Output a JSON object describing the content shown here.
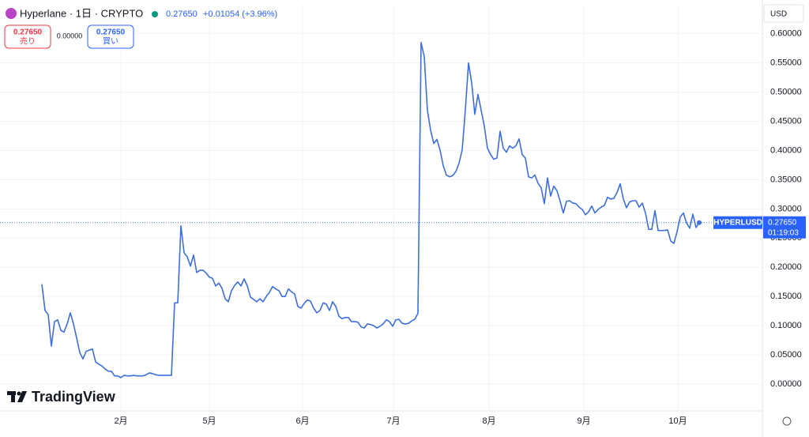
{
  "header": {
    "symbol": "Hyperlane · 1日 · CRYPTO",
    "price": "0.27650",
    "change": "+0.01054 (+3.96%)"
  },
  "trade": {
    "sell_price": "0.27650",
    "sell_label": "売り",
    "spread": "0.00000",
    "buy_price": "0.27650",
    "buy_label": "買い"
  },
  "currency": "USD",
  "logo": "TradingView",
  "price_label": {
    "symbol": "HYPERLUSD",
    "price": "0.27650",
    "countdown": "01:19:03"
  },
  "chart_data": {
    "type": "line",
    "color": "#3d6fd9",
    "grid": true,
    "values": [
      0.171,
      0.126,
      0.119,
      0.065,
      0.107,
      0.11,
      0.092,
      0.089,
      0.103,
      0.122,
      0.103,
      0.079,
      0.054,
      0.043,
      0.056,
      0.058,
      0.06,
      0.038,
      0.034,
      0.031,
      0.026,
      0.022,
      0.022,
      0.014,
      0.014,
      0.011,
      0.015,
      0.014,
      0.014,
      0.015,
      0.014,
      0.014,
      0.014,
      0.016,
      0.019,
      0.018,
      0.016,
      0.015,
      0.015,
      0.015,
      0.015,
      0.015,
      0.139,
      0.139,
      0.271,
      0.225,
      0.218,
      0.202,
      0.221,
      0.191,
      0.195,
      0.195,
      0.19,
      0.183,
      0.181,
      0.168,
      0.173,
      0.164,
      0.146,
      0.141,
      0.16,
      0.169,
      0.175,
      0.168,
      0.18,
      0.168,
      0.149,
      0.145,
      0.141,
      0.146,
      0.141,
      0.15,
      0.157,
      0.167,
      0.163,
      0.16,
      0.15,
      0.15,
      0.163,
      0.158,
      0.154,
      0.133,
      0.13,
      0.138,
      0.144,
      0.142,
      0.13,
      0.122,
      0.126,
      0.139,
      0.137,
      0.126,
      0.141,
      0.133,
      0.116,
      0.112,
      0.114,
      0.114,
      0.107,
      0.107,
      0.106,
      0.098,
      0.096,
      0.103,
      0.102,
      0.1,
      0.096,
      0.099,
      0.103,
      0.11,
      0.107,
      0.099,
      0.11,
      0.111,
      0.104,
      0.103,
      0.104,
      0.108,
      0.111,
      0.121,
      0.585,
      0.561,
      0.469,
      0.435,
      0.412,
      0.419,
      0.401,
      0.374,
      0.358,
      0.355,
      0.357,
      0.364,
      0.378,
      0.401,
      0.469,
      0.55,
      0.516,
      0.462,
      0.496,
      0.469,
      0.442,
      0.404,
      0.393,
      0.385,
      0.387,
      0.433,
      0.404,
      0.397,
      0.408,
      0.404,
      0.408,
      0.42,
      0.393,
      0.387,
      0.355,
      0.353,
      0.358,
      0.344,
      0.336,
      0.309,
      0.353,
      0.322,
      0.339,
      0.331,
      0.313,
      0.293,
      0.313,
      0.314,
      0.31,
      0.309,
      0.303,
      0.299,
      0.29,
      0.295,
      0.305,
      0.293,
      0.299,
      0.303,
      0.306,
      0.32,
      0.317,
      0.318,
      0.328,
      0.343,
      0.317,
      0.302,
      0.312,
      0.314,
      0.314,
      0.303,
      0.31,
      0.293,
      0.265,
      0.265,
      0.297,
      0.263,
      0.263,
      0.263,
      0.264,
      0.245,
      0.241,
      0.261,
      0.286,
      0.293,
      0.276,
      0.267,
      0.291,
      0.268,
      0.2765
    ],
    "xlim": [
      -13.25,
      228
    ],
    "xticks": [
      {
        "value": 25,
        "label": "2月"
      },
      {
        "value": 53,
        "label": "5月"
      },
      {
        "value": 82.5,
        "label": "6月"
      },
      {
        "value": 111.25,
        "label": "7月"
      },
      {
        "value": 141.5,
        "label": "8月"
      },
      {
        "value": 171.5,
        "label": "9月"
      },
      {
        "value": 201.25,
        "label": "10月"
      }
    ],
    "ylim": [
      -0.046,
      0.651
    ],
    "yticks": [
      {
        "value": 0,
        "label": "0.00000"
      },
      {
        "value": 0.05,
        "label": "0.05000"
      },
      {
        "value": 0.1,
        "label": "0.10000"
      },
      {
        "value": 0.15,
        "label": "0.15000"
      },
      {
        "value": 0.2,
        "label": "0.20000"
      },
      {
        "value": 0.25,
        "label": "0.25000"
      },
      {
        "value": 0.3,
        "label": "0.30000"
      },
      {
        "value": 0.35,
        "label": "0.35000"
      },
      {
        "value": 0.4,
        "label": "0.40000"
      },
      {
        "value": 0.45,
        "label": "0.45000"
      },
      {
        "value": 0.5,
        "label": "0.50000"
      },
      {
        "value": 0.55,
        "label": "0.55000"
      },
      {
        "value": 0.6,
        "label": "0.60000"
      }
    ]
  }
}
